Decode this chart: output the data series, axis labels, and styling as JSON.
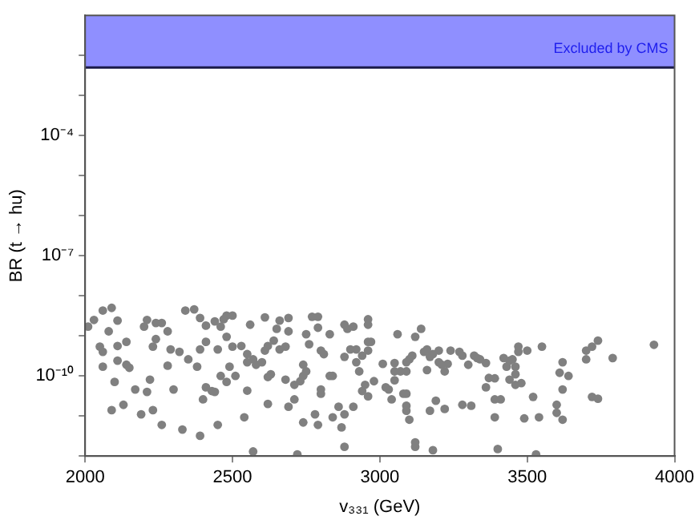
{
  "chart_data": {
    "type": "scatter",
    "xlabel": "v₃₃₁ (GeV)",
    "ylabel": "BR (t → hu)",
    "color": "#808080",
    "marker": "circle",
    "log": "y",
    "grid": false,
    "legend": false,
    "xlim": [
      2000,
      4000
    ],
    "xticks": [
      2000,
      2500,
      3000,
      3500,
      4000
    ],
    "ylim": [
      1e-12,
      0.1
    ],
    "yticks": [
      {
        "value": 1e-12,
        "label": null
      },
      {
        "value": 1e-11,
        "label": null
      },
      {
        "value": 1e-10,
        "label": "10⁻¹⁰"
      },
      {
        "value": 1e-09,
        "label": null
      },
      {
        "value": 1e-08,
        "label": null
      },
      {
        "value": 1e-07,
        "label": "10⁻⁷"
      },
      {
        "value": 1e-06,
        "label": null
      },
      {
        "value": 1e-05,
        "label": null
      },
      {
        "value": 0.0001,
        "label": "10⁻⁴"
      },
      {
        "value": 0.001,
        "label": null
      },
      {
        "value": 0.01,
        "label": null
      }
    ],
    "ref_lines": [
      {
        "axis": "y",
        "value": 0.005,
        "color": "#1a1a4a"
      }
    ],
    "bands": [
      {
        "axis": "y",
        "from": 0.005,
        "to": 0.1,
        "label": "Excluded by CMS",
        "color": "#8f8fff"
      }
    ],
    "x": [
      2010,
      2030,
      2060,
      2090,
      2110,
      2080,
      2050,
      2060,
      2060,
      2110,
      2140,
      2110,
      2140,
      2150,
      2100,
      2090,
      2130,
      2170,
      2190,
      2210,
      2220,
      2210,
      2200,
      2240,
      2260,
      2240,
      2230,
      2280,
      2290,
      2280,
      2300,
      2230,
      2260,
      2320,
      2340,
      2370,
      2350,
      2380,
      2390,
      2390,
      2410,
      2410,
      2400,
      2410,
      2430,
      2390,
      2330,
      2440,
      2440,
      2470,
      2460,
      2480,
      2500,
      2500,
      2530,
      2480,
      2450,
      2490,
      2460,
      2480,
      2510,
      2450,
      2540,
      2550,
      2560,
      2550,
      2550,
      2570,
      2580,
      2570,
      2610,
      2620,
      2610,
      2600,
      2630,
      2620,
      2620,
      2640,
      2650,
      2660,
      2690,
      2690,
      2660,
      2680,
      2680,
      2690,
      2710,
      2710,
      2730,
      2740,
      2740,
      2740,
      2750,
      2760,
      2750,
      2770,
      2790,
      2790,
      2800,
      2810,
      2800,
      2800,
      2780,
      2790,
      2830,
      2830,
      2840,
      2840,
      2860,
      2870,
      2880,
      2880,
      2880,
      2890,
      2910,
      2880,
      2900,
      2920,
      2920,
      2940,
      2930,
      2950,
      2940,
      2960,
      2960,
      2970,
      2980,
      2910,
      2960,
      2960,
      2960,
      3010,
      3020,
      3030,
      3040,
      3050,
      3060,
      3050,
      3050,
      3070,
      3090,
      3080,
      3090,
      3090,
      3090,
      3100,
      3090,
      3100,
      3110,
      3120,
      3140,
      3120,
      3120,
      3150,
      3160,
      3170,
      3160,
      3180,
      3200,
      3200,
      3210,
      3220,
      3230,
      3240,
      3190,
      3220,
      3170,
      3180,
      3270,
      3280,
      3300,
      3280,
      3310,
      3320,
      3330,
      3340,
      3360,
      3370,
      3360,
      3390,
      3390,
      3410,
      3390,
      3400,
      3420,
      3440,
      3430,
      3450,
      3460,
      3460,
      3440,
      3460,
      3480,
      3470,
      3470,
      3500,
      3490,
      3520,
      3540,
      3550,
      3600,
      3600,
      3620,
      3610,
      3620,
      3620,
      3640,
      3700,
      3700,
      3720,
      3740,
      3720,
      3740,
      3790,
      3930,
      2720,
      3530
    ],
    "values": [
      1.7e-09,
      2.5e-09,
      4.3e-09,
      5e-09,
      2.4e-09,
      1.3e-09,
      5.4e-10,
      4e-10,
      1.7e-10,
      5.6e-10,
      7.1e-10,
      2.4e-10,
      1.9e-10,
      1.6e-10,
      7.1e-11,
      1.4e-11,
      1.9e-11,
      4.6e-11,
      1.1e-11,
      4e-11,
      8.1e-11,
      2.5e-09,
      1.7e-09,
      2.1e-09,
      2.1e-09,
      8.3e-10,
      5.4e-10,
      1.3e-09,
      4.6e-10,
      1.8e-10,
      4.6e-11,
      1.4e-11,
      6e-12,
      4e-10,
      4.3e-09,
      4.6e-09,
      2.6e-10,
      1.7e-10,
      4.6e-10,
      2.8e-09,
      1.8e-09,
      7.1e-10,
      2.6e-11,
      5.2e-11,
      4.2e-11,
      3.2e-12,
      4.6e-12,
      4e-11,
      2.3e-09,
      2.6e-09,
      1.7e-09,
      3.2e-09,
      3.2e-09,
      5.4e-10,
      5.6e-10,
      9.5e-10,
      4.6e-10,
      1.7e-10,
      1e-10,
      7.1e-11,
      1e-10,
      6e-12,
      9.3e-12,
      4.3e-11,
      1.9e-09,
      3.5e-10,
      2.2e-10,
      2.6e-10,
      1.9e-10,
      1.3e-12,
      2.9e-09,
      5.6e-10,
      4.3e-10,
      2.2e-10,
      1.1e-10,
      9.4e-11,
      2e-11,
      7.6e-10,
      1.5e-09,
      2.4e-09,
      2.8e-09,
      1.3e-09,
      4.6e-10,
      5.4e-10,
      8.1e-11,
      1.7e-11,
      6e-11,
      2.6e-11,
      7.4e-11,
      1e-10,
      1.9e-10,
      6.9e-12,
      1.3e-10,
      6.2e-10,
      1.1e-09,
      3e-09,
      3e-09,
      1.6e-09,
      4.3e-10,
      3.5e-10,
      4.6e-11,
      3.6e-11,
      1.1e-11,
      6e-12,
      1.1e-09,
      1e-10,
      1e-10,
      9.3e-12,
      1.7e-11,
      5.2e-12,
      1.1e-11,
      1.7e-12,
      1.9e-09,
      1.5e-09,
      1.7e-09,
      3e-10,
      4.6e-10,
      4.6e-10,
      2.2e-10,
      3.2e-10,
      1.3e-10,
      6e-11,
      4.2e-11,
      1.9e-09,
      7.1e-10,
      7.1e-10,
      7.4e-11,
      1.7e-11,
      2.6e-09,
      4.3e-10,
      3.1e-11,
      2e-10,
      5.2e-11,
      4.6e-11,
      2.6e-11,
      2.1e-10,
      1.1e-09,
      7.8e-11,
      1.3e-10,
      1.3e-10,
      1.3e-10,
      3.6e-11,
      3.6e-11,
      1.8e-11,
      1.35e-11,
      8.1e-12,
      2.2e-10,
      2.6e-10,
      3.2e-10,
      9.5e-10,
      1.5e-09,
      2.2e-12,
      1.7e-12,
      4e-10,
      4.6e-10,
      3e-10,
      1.4e-10,
      3.5e-10,
      4.3e-10,
      2.2e-10,
      1.9e-10,
      1.3e-10,
      2e-10,
      4.3e-10,
      2.4e-11,
      1.5e-11,
      1.35e-11,
      1.4e-12,
      4e-10,
      3.2e-10,
      1.9e-10,
      1.9e-11,
      1.8e-11,
      3.2e-10,
      2.8e-10,
      2.6e-10,
      2.1e-10,
      8.9e-11,
      5.2e-11,
      8.7e-11,
      2.6e-11,
      2.6e-11,
      9.3e-12,
      1.5e-12,
      2.8e-10,
      2.4e-10,
      1.7e-10,
      2.6e-10,
      1.7e-10,
      1.1e-10,
      8.1e-11,
      6e-11,
      6.6e-11,
      5.4e-10,
      4e-10,
      4.3e-10,
      8.7e-12,
      3e-11,
      9.3e-12,
      5.4e-10,
      1.9e-11,
      1.2e-11,
      2.2e-10,
      1.2e-10,
      4.6e-11,
      8.1e-12,
      1e-10,
      4.3e-10,
      2.6e-10,
      5.4e-10,
      7.6e-10,
      3e-11,
      2.7e-11,
      2.8e-10,
      6e-10,
      1.1e-12,
      1.1e-12
    ]
  }
}
